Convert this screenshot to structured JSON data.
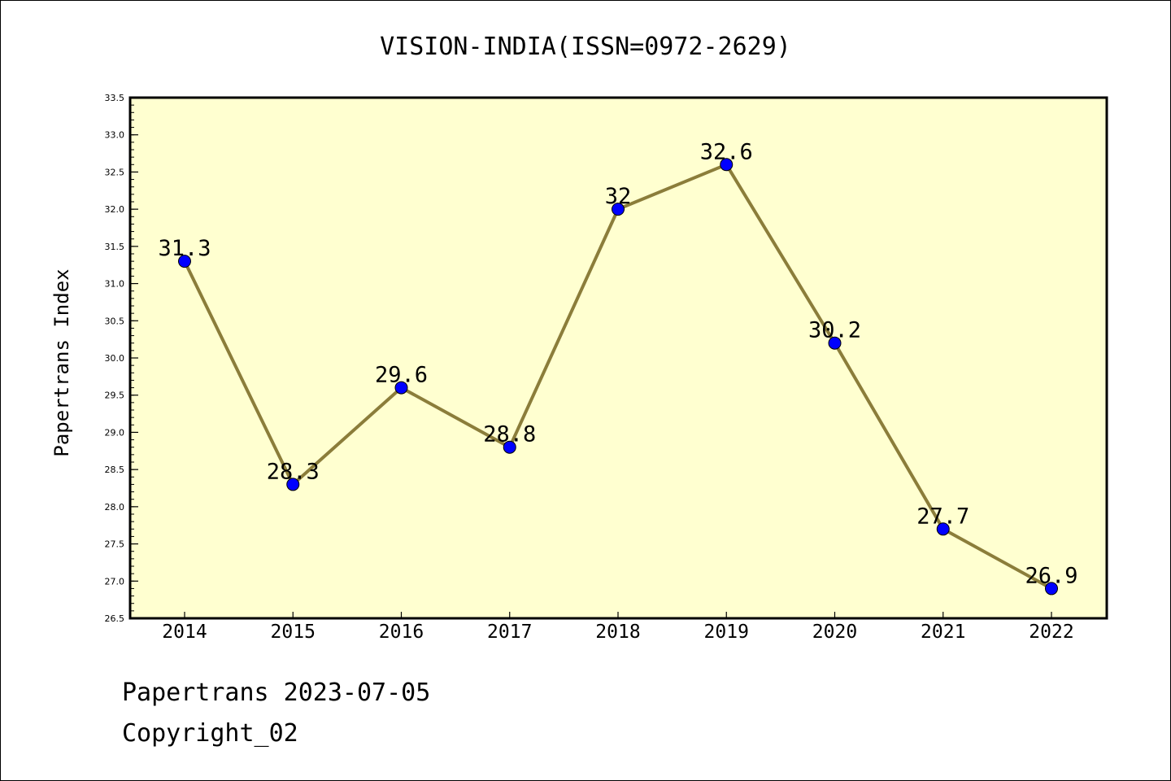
{
  "chart_data": {
    "type": "line",
    "title": "VISION-INDIA(ISSN=0972-2629)",
    "xlabel": "",
    "ylabel": "Papertrans Index",
    "categories": [
      "2014",
      "2015",
      "2016",
      "2017",
      "2018",
      "2019",
      "2020",
      "2021",
      "2022"
    ],
    "series": [
      {
        "values": [
          31.3,
          28.3,
          29.6,
          28.8,
          32.0,
          32.6,
          30.2,
          27.7,
          26.9
        ],
        "data_labels": [
          "31.3",
          "28.3",
          "29.6",
          "28.8",
          "32",
          "32.6",
          "30.2",
          "27.7",
          "26.9"
        ]
      }
    ],
    "ylim": [
      26.5,
      33.5
    ],
    "yticks": [
      26.5,
      27.0,
      27.5,
      28.0,
      28.5,
      29.0,
      29.5,
      30.0,
      30.5,
      31.0,
      31.5,
      32.0,
      32.5,
      33.0,
      33.5
    ],
    "ytick_labels": [
      "26.5",
      "27.0",
      "27.5",
      "28.0",
      "28.5",
      "29.0",
      "29.5",
      "30.0",
      "30.5",
      "31.0",
      "31.5",
      "32.0",
      "32.5",
      "33.0",
      "33.5"
    ],
    "grid": false,
    "legend": "none",
    "colors": {
      "plot_background": "#ffffd0",
      "line": "#8b7d3a",
      "marker": "#0000ff"
    }
  },
  "footer": {
    "line1": "Papertrans 2023-07-05",
    "line2": "Copyright_02"
  }
}
